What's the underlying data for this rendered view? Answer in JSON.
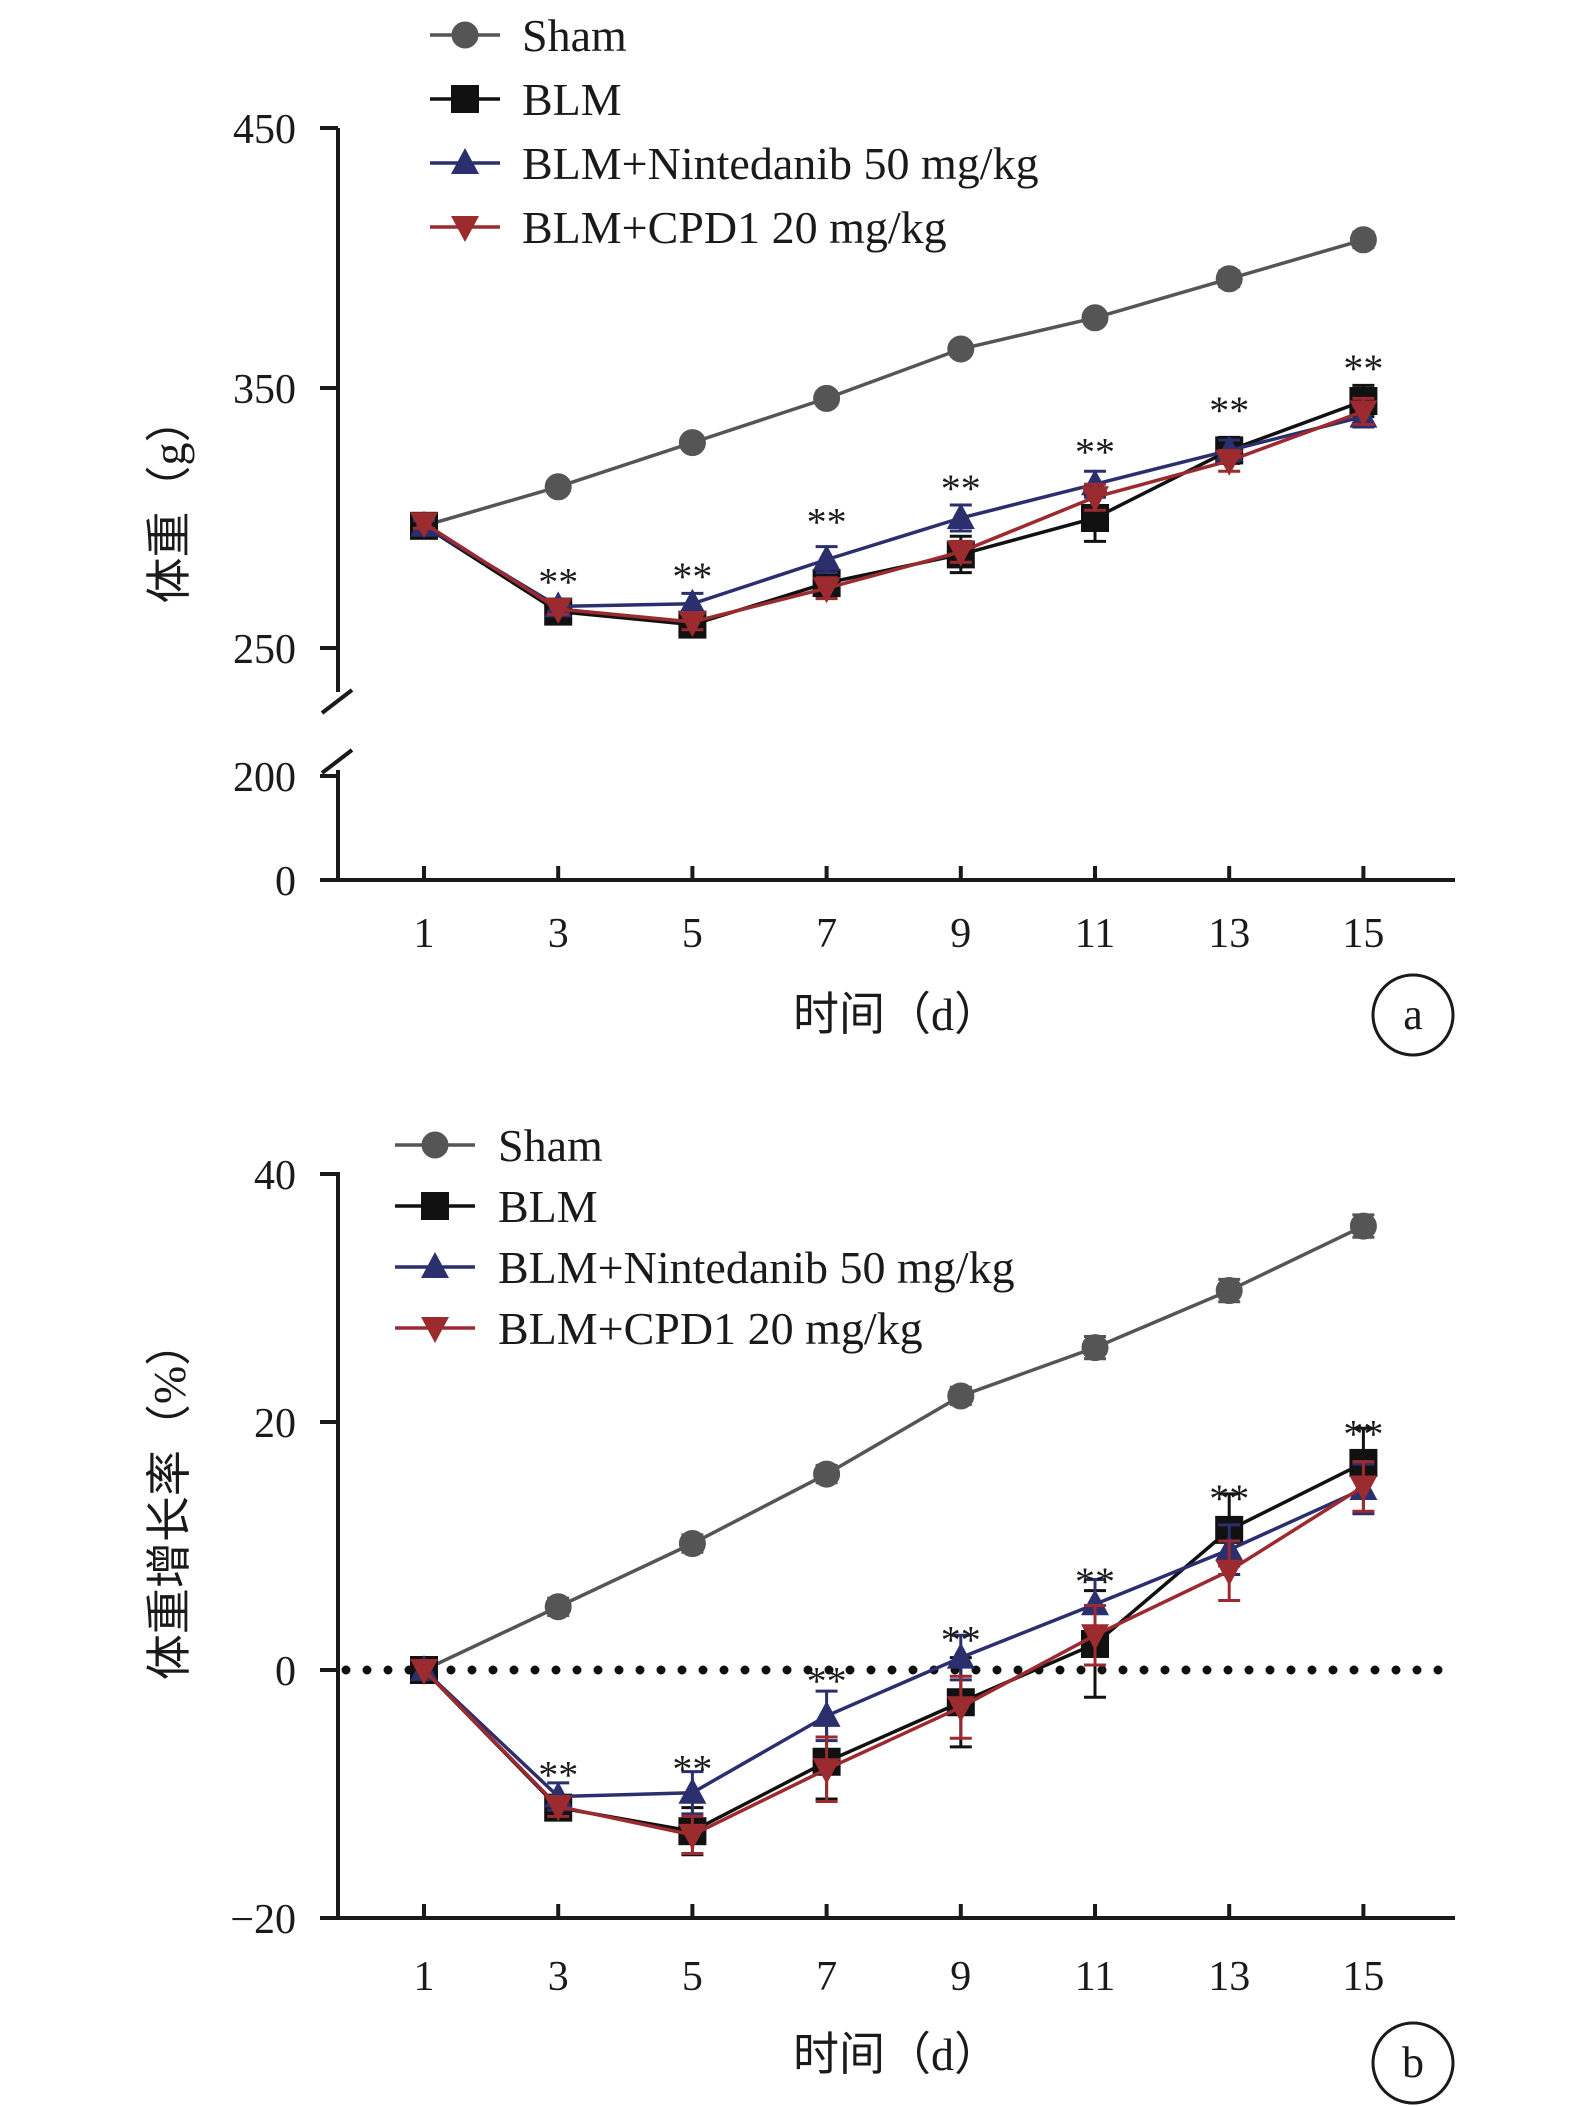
{
  "chart_data": [
    {
      "panel": "a",
      "type": "line",
      "title": "",
      "xlabel": "时间（d）",
      "ylabel": "体重（g）",
      "x": [
        1,
        3,
        5,
        7,
        9,
        11,
        13,
        15
      ],
      "x_ticks": [
        "1",
        "3",
        "5",
        "7",
        "9",
        "11",
        "13",
        "15"
      ],
      "y_ticks": [
        "0",
        "200",
        "250",
        "350",
        "450"
      ],
      "y_axis_break": true,
      "ylim": [
        0,
        450
      ],
      "grid": false,
      "legend_position": "top-left",
      "series": [
        {
          "name": "Sham",
          "marker": "circle",
          "color": "#555555",
          "values": [
            297,
            312,
            329,
            346,
            365,
            377,
            392,
            407
          ],
          "err": [
            2,
            2,
            2,
            2,
            2,
            2,
            3,
            3
          ]
        },
        {
          "name": "BLM",
          "marker": "square",
          "color": "#111111",
          "values": [
            297,
            264,
            259,
            275,
            286,
            300,
            326,
            345
          ],
          "err": [
            2,
            2,
            3,
            5,
            7,
            9,
            5,
            6
          ]
        },
        {
          "name": "BLM+Nintedanib 50 mg/kg",
          "marker": "triangle-up",
          "color": "#2b2f6e",
          "values": [
            297,
            266,
            267,
            284,
            300,
            313,
            326,
            339
          ],
          "err": [
            2,
            2,
            4,
            5,
            5,
            5,
            4,
            4
          ]
        },
        {
          "name": "BLM+CPD1 20 mg/kg",
          "marker": "triangle-down",
          "color": "#9b2b2e",
          "values": [
            298,
            265,
            260,
            273,
            287,
            308,
            322,
            341
          ],
          "err": [
            2,
            2,
            3,
            4,
            4,
            5,
            4,
            5
          ]
        }
      ],
      "annotations": [
        {
          "x": 3,
          "text": "**",
          "y": 281
        },
        {
          "x": 5,
          "text": "**",
          "y": 283
        },
        {
          "x": 7,
          "text": "**",
          "y": 304
        },
        {
          "x": 9,
          "text": "**",
          "y": 317
        },
        {
          "x": 11,
          "text": "**",
          "y": 331
        },
        {
          "x": 13,
          "text": "**",
          "y": 347
        },
        {
          "x": 15,
          "text": "**",
          "y": 363
        }
      ]
    },
    {
      "panel": "b",
      "type": "line",
      "title": "",
      "xlabel": "时间（d）",
      "ylabel": "体重增长率（%）",
      "x": [
        1,
        3,
        5,
        7,
        9,
        11,
        13,
        15
      ],
      "x_ticks": [
        "1",
        "3",
        "5",
        "7",
        "9",
        "11",
        "13",
        "15"
      ],
      "y_ticks": [
        "−20",
        "0",
        "20",
        "40"
      ],
      "ylim": [
        -20,
        40
      ],
      "grid": false,
      "zero_reference_line": "dotted",
      "legend_position": "top-left",
      "series": [
        {
          "name": "Sham",
          "marker": "circle",
          "color": "#555555",
          "values": [
            0,
            5.1,
            10.2,
            15.8,
            22.1,
            26.0,
            30.6,
            35.8
          ],
          "err": [
            0,
            0.7,
            0.7,
            0.7,
            0.7,
            0.9,
            0.9,
            0.9
          ]
        },
        {
          "name": "BLM",
          "marker": "square",
          "color": "#111111",
          "values": [
            0,
            -11.1,
            -13.0,
            -7.4,
            -2.6,
            2.1,
            11.3,
            16.7
          ],
          "err": [
            0,
            0.8,
            1.9,
            3.0,
            3.6,
            4.3,
            2.9,
            2.8
          ]
        },
        {
          "name": "BLM+Nintedanib 50 mg/kg",
          "marker": "triangle-up",
          "color": "#2b2f6e",
          "values": [
            0,
            -10.2,
            -9.9,
            -3.7,
            1.0,
            5.3,
            9.7,
            14.6
          ],
          "err": [
            0,
            1.1,
            1.7,
            2.0,
            1.8,
            2.0,
            2.0,
            2.0
          ]
        },
        {
          "name": "BLM+CPD1 20 mg/kg",
          "marker": "triangle-down",
          "color": "#9b2b2e",
          "values": [
            0,
            -11.0,
            -13.3,
            -8.0,
            -3.0,
            2.8,
            8.0,
            14.8
          ],
          "err": [
            0,
            0.8,
            1.5,
            2.6,
            2.5,
            2.4,
            2.4,
            2.0
          ]
        }
      ],
      "annotations": [
        {
          "x": 3,
          "text": "**",
          "y": -7.3
        },
        {
          "x": 5,
          "text": "**",
          "y": -6.8
        },
        {
          "x": 7,
          "text": "**",
          "y": 0.3
        },
        {
          "x": 9,
          "text": "**",
          "y": 3.6
        },
        {
          "x": 11,
          "text": "**",
          "y": 8.3
        },
        {
          "x": 13,
          "text": "**",
          "y": 15.0
        },
        {
          "x": 15,
          "text": "**",
          "y": 20.2
        }
      ]
    }
  ]
}
